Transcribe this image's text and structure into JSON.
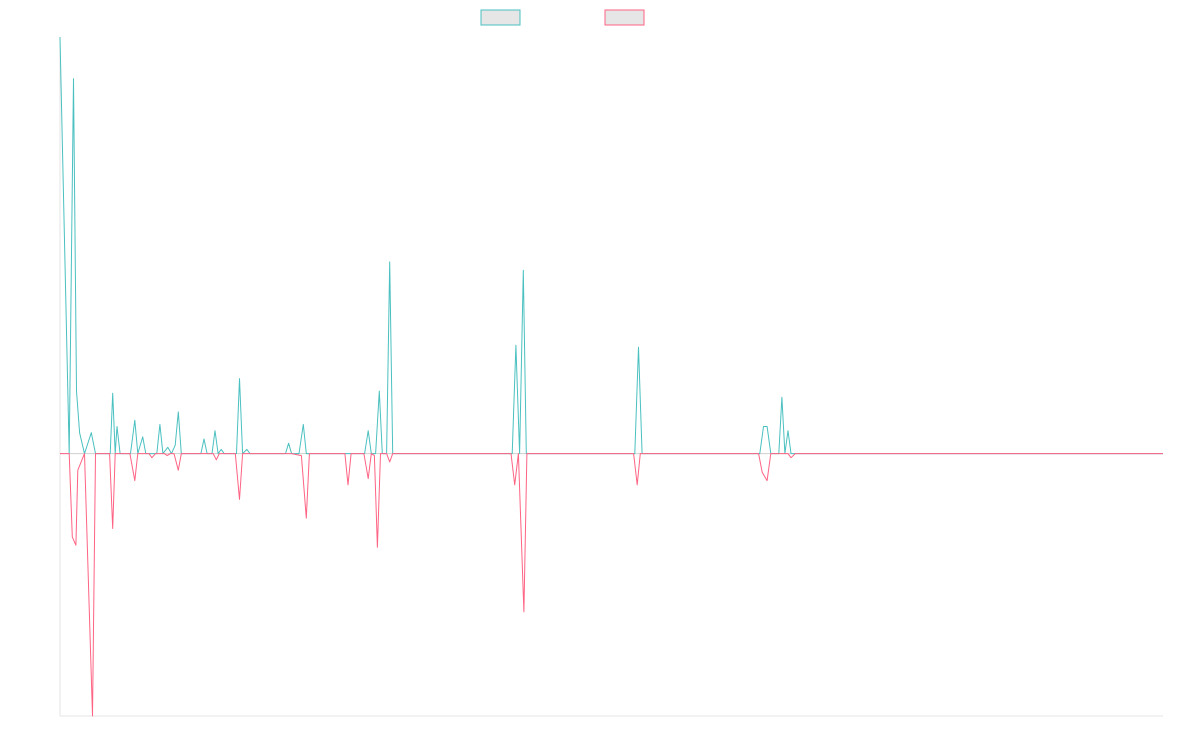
{
  "chart_data": {
    "type": "line",
    "title": "",
    "xlabel": "",
    "ylabel": "",
    "grid": false,
    "legend": "top-center",
    "x_range": [
      0,
      180
    ],
    "ylim": [
      -0.63,
      1.0
    ],
    "series": [
      {
        "color": "#4bc0c0",
        "fill": "#e6e6e6",
        "points": [
          [
            0,
            1.0
          ],
          [
            1.5,
            0.0
          ],
          [
            2.2,
            0.9
          ],
          [
            2.7,
            0.15
          ],
          [
            3.2,
            0.05
          ],
          [
            4.0,
            0.0
          ],
          [
            5.1,
            0.05
          ],
          [
            5.8,
            0.0
          ],
          [
            6.3,
            0.0
          ],
          [
            8.2,
            0.0
          ],
          [
            8.6,
            0.145
          ],
          [
            9.0,
            0.0
          ],
          [
            9.3,
            0.065
          ],
          [
            9.8,
            0.0
          ],
          [
            11.5,
            0.0
          ],
          [
            12.2,
            0.08
          ],
          [
            12.7,
            0.0
          ],
          [
            13.5,
            0.04
          ],
          [
            14.0,
            0.0
          ],
          [
            15.8,
            0.0
          ],
          [
            16.3,
            0.07
          ],
          [
            16.8,
            0.0
          ],
          [
            17.6,
            0.015
          ],
          [
            18.2,
            0.0
          ],
          [
            18.8,
            0.02
          ],
          [
            19.3,
            0.1
          ],
          [
            19.8,
            0.0
          ],
          [
            23.0,
            0.0
          ],
          [
            23.5,
            0.035
          ],
          [
            24.0,
            0.0
          ],
          [
            24.8,
            0.0
          ],
          [
            25.3,
            0.055
          ],
          [
            25.8,
            0.0
          ],
          [
            26.3,
            0.01
          ],
          [
            26.8,
            0.0
          ],
          [
            28.8,
            0.0
          ],
          [
            29.3,
            0.18
          ],
          [
            29.8,
            0.0
          ],
          [
            30.5,
            0.01
          ],
          [
            31.0,
            0.0
          ],
          [
            36.8,
            0.0
          ],
          [
            37.3,
            0.025
          ],
          [
            37.8,
            0.0
          ],
          [
            39.0,
            0.0
          ],
          [
            39.7,
            0.07
          ],
          [
            40.2,
            0.0
          ],
          [
            49.7,
            0.0
          ],
          [
            50.3,
            0.055
          ],
          [
            50.8,
            0.0
          ],
          [
            51.5,
            0.0
          ],
          [
            52.1,
            0.15
          ],
          [
            52.6,
            0.0
          ],
          [
            53.3,
            0.0
          ],
          [
            53.8,
            0.46
          ],
          [
            54.3,
            0.0
          ],
          [
            65.0,
            0.0
          ],
          [
            65.5,
            0.0
          ],
          [
            73.8,
            0.0
          ],
          [
            74.4,
            0.26
          ],
          [
            75.0,
            0.0
          ],
          [
            75.6,
            0.44
          ],
          [
            76.1,
            0.0
          ],
          [
            83.8,
            0.0
          ],
          [
            84.4,
            0.0
          ],
          [
            85.0,
            0.0
          ],
          [
            93.8,
            0.0
          ],
          [
            94.4,
            0.255
          ],
          [
            95.0,
            0.0
          ],
          [
            95.6,
            0.0
          ],
          [
            114.2,
            0.0
          ],
          [
            114.8,
            0.065
          ],
          [
            115.4,
            0.065
          ],
          [
            116.0,
            0.0
          ],
          [
            117.3,
            0.0
          ],
          [
            117.8,
            0.135
          ],
          [
            118.3,
            0.0
          ],
          [
            118.8,
            0.055
          ],
          [
            119.3,
            0.0
          ],
          [
            180.0,
            0.0
          ]
        ]
      },
      {
        "color": "#ff6384",
        "fill": "#e6e6e6",
        "points": [
          [
            0,
            0.0
          ],
          [
            1.5,
            0.0
          ],
          [
            2.0,
            -0.2
          ],
          [
            2.6,
            -0.22
          ],
          [
            2.9,
            -0.04
          ],
          [
            4.0,
            0.0
          ],
          [
            5.3,
            -0.63
          ],
          [
            5.8,
            0.0
          ],
          [
            8.1,
            0.0
          ],
          [
            8.6,
            -0.18
          ],
          [
            9.0,
            0.0
          ],
          [
            11.4,
            0.0
          ],
          [
            12.2,
            -0.065
          ],
          [
            12.7,
            0.0
          ],
          [
            14.5,
            0.0
          ],
          [
            15.0,
            -0.01
          ],
          [
            15.6,
            0.0
          ],
          [
            17.0,
            0.0
          ],
          [
            17.5,
            -0.005
          ],
          [
            18.0,
            0.0
          ],
          [
            18.6,
            0.0
          ],
          [
            19.3,
            -0.04
          ],
          [
            19.8,
            0.0
          ],
          [
            23.0,
            0.0
          ],
          [
            25.0,
            0.0
          ],
          [
            25.5,
            -0.015
          ],
          [
            26.0,
            0.0
          ],
          [
            28.6,
            0.0
          ],
          [
            29.3,
            -0.11
          ],
          [
            29.8,
            0.0
          ],
          [
            37.8,
            0.0
          ],
          [
            39.4,
            -0.005
          ],
          [
            40.2,
            -0.155
          ],
          [
            40.7,
            0.0
          ],
          [
            46.5,
            0.0
          ],
          [
            47.0,
            -0.075
          ],
          [
            47.5,
            0.0
          ],
          [
            49.6,
            0.0
          ],
          [
            50.3,
            -0.06
          ],
          [
            50.8,
            0.0
          ],
          [
            51.3,
            -0.005
          ],
          [
            51.8,
            -0.225
          ],
          [
            52.3,
            0.0
          ],
          [
            53.3,
            0.0
          ],
          [
            53.8,
            -0.02
          ],
          [
            54.3,
            0.0
          ],
          [
            65.0,
            0.0
          ],
          [
            65.5,
            0.0
          ],
          [
            73.6,
            0.0
          ],
          [
            74.2,
            -0.075
          ],
          [
            74.8,
            0.0
          ],
          [
            75.7,
            -0.38
          ],
          [
            76.2,
            0.0
          ],
          [
            84.4,
            0.0
          ],
          [
            93.6,
            0.0
          ],
          [
            94.2,
            -0.075
          ],
          [
            94.7,
            0.0
          ],
          [
            95.5,
            0.0
          ],
          [
            114.0,
            0.0
          ],
          [
            114.6,
            -0.045
          ],
          [
            115.4,
            -0.065
          ],
          [
            116.0,
            0.0
          ],
          [
            118.8,
            0.0
          ],
          [
            119.3,
            -0.01
          ],
          [
            120.0,
            0.0
          ],
          [
            180.0,
            0.0
          ]
        ]
      }
    ]
  }
}
